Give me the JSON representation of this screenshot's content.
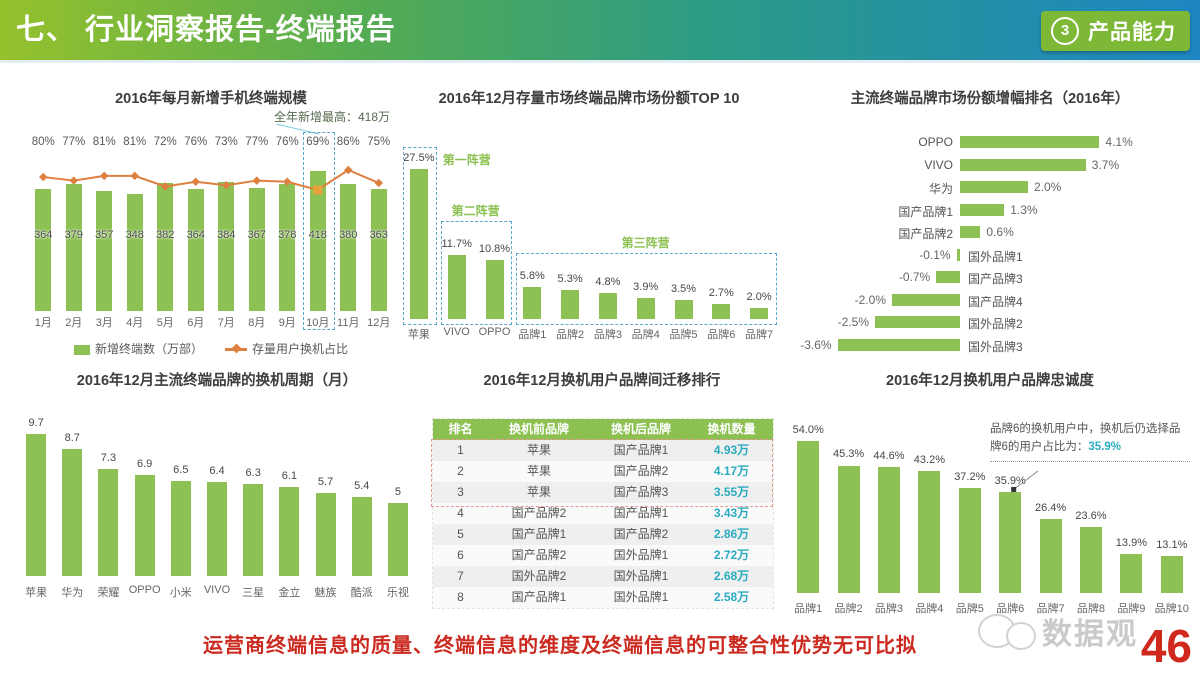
{
  "header": {
    "title": "七、 行业洞察报告-终端报告",
    "badge_number": "3",
    "badge_label": "产品能力"
  },
  "colors": {
    "bar_green": "#8dc153",
    "line_orange": "#dd8040",
    "teal": "#2aabbf",
    "red": "#cb2a21",
    "header_gradient": [
      "#95c12d",
      "#2b9b87",
      "#1d86c3"
    ]
  },
  "chart_data": [
    {
      "id": "monthly_new_terminals",
      "type": "bar",
      "title": "2016年每月新增手机终端规模",
      "annotation": "全年新增最高：418万",
      "categories": [
        "1月",
        "2月",
        "3月",
        "4月",
        "5月",
        "6月",
        "7月",
        "8月",
        "9月",
        "10月",
        "11月",
        "12月"
      ],
      "series": [
        {
          "name": "新增终端数（万部）",
          "type": "bar",
          "values": [
            364,
            379,
            357,
            348,
            382,
            364,
            384,
            367,
            378,
            418,
            380,
            363
          ]
        },
        {
          "name": "存量用户换机占比",
          "type": "line",
          "values": [
            80,
            77,
            81,
            81,
            72,
            76,
            73,
            77,
            76,
            69,
            86,
            75
          ],
          "unit": "%"
        }
      ],
      "highlight_category": "10月",
      "ylim": [
        0,
        418
      ]
    },
    {
      "id": "brand_share_top10",
      "type": "bar",
      "title": "2016年12月存量市场终端品牌市场份额TOP 10",
      "categories": [
        "苹果",
        "VIVO",
        "OPPO",
        "品牌1",
        "品牌2",
        "品牌3",
        "品牌4",
        "品牌5",
        "品牌6",
        "品牌7"
      ],
      "values": [
        27.5,
        11.7,
        10.8,
        5.8,
        5.3,
        4.8,
        3.9,
        3.5,
        2.7,
        2.0
      ],
      "unit": "%",
      "groups": [
        {
          "label": "第一阵营",
          "span": [
            0,
            0
          ]
        },
        {
          "label": "第二阵营",
          "span": [
            1,
            2
          ]
        },
        {
          "label": "第三阵营",
          "span": [
            3,
            9
          ]
        }
      ],
      "ylim": [
        0,
        28
      ]
    },
    {
      "id": "share_growth_ranking",
      "type": "bar-horizontal",
      "title": "主流终端品牌市场份额增幅排名（2016年）",
      "categories": [
        "OPPO",
        "VIVO",
        "华为",
        "国产品牌1",
        "国产品牌2",
        "国外品牌1",
        "国产品牌3",
        "国产品牌4",
        "国外品牌2",
        "国外品牌3"
      ],
      "values": [
        4.1,
        3.7,
        2.0,
        1.3,
        0.6,
        -0.1,
        -0.7,
        -2.0,
        -2.5,
        -3.6
      ],
      "unit": "%",
      "xlim": [
        -4,
        4.5
      ]
    },
    {
      "id": "replacement_cycle",
      "type": "bar",
      "title": "2016年12月主流终端品牌的换机周期（月）",
      "categories": [
        "苹果",
        "华为",
        "荣耀",
        "OPPO",
        "小米",
        "VIVO",
        "三星",
        "金立",
        "魅族",
        "酷派",
        "乐视"
      ],
      "values": [
        9.7,
        8.7,
        7.3,
        6.9,
        6.5,
        6.4,
        6.3,
        6.1,
        5.7,
        5.4,
        5
      ],
      "ylim": [
        0,
        10
      ]
    },
    {
      "id": "brand_migration",
      "type": "table",
      "title": "2016年12月换机用户品牌间迁移排行",
      "columns": [
        "排名",
        "换机前品牌",
        "换机后品牌",
        "换机数量"
      ],
      "rows": [
        [
          "1",
          "苹果",
          "国产品牌1",
          "4.93万"
        ],
        [
          "2",
          "苹果",
          "国产品牌2",
          "4.17万"
        ],
        [
          "3",
          "苹果",
          "国产品牌3",
          "3.55万"
        ],
        [
          "4",
          "国产品牌2",
          "国产品牌1",
          "3.43万"
        ],
        [
          "5",
          "国产品牌1",
          "国产品牌2",
          "2.86万"
        ],
        [
          "6",
          "国产品牌2",
          "国外品牌1",
          "2.72万"
        ],
        [
          "7",
          "国外品牌2",
          "国外品牌1",
          "2.68万"
        ],
        [
          "8",
          "国产品牌1",
          "国外品牌1",
          "2.58万"
        ]
      ],
      "highlight_rows": [
        0,
        1,
        2
      ]
    },
    {
      "id": "brand_loyalty",
      "type": "bar",
      "title": "2016年12月换机用户品牌忠诚度",
      "categories": [
        "品牌1",
        "品牌2",
        "品牌3",
        "品牌4",
        "品牌5",
        "品牌6",
        "品牌7",
        "品牌8",
        "品牌9",
        "品牌10"
      ],
      "values": [
        54.0,
        45.3,
        44.6,
        43.2,
        37.2,
        35.9,
        26.4,
        23.6,
        13.9,
        13.1
      ],
      "unit": "%",
      "annotation": {
        "text": "品牌6的换机用户中，换机后仍选择品牌6的用户占比为：",
        "highlight": "35.9%"
      },
      "ylim": [
        0,
        55
      ]
    }
  ],
  "footer": {
    "note": "运营商终端信息的质量、终端信息的维度及终端信息的可整合性优势无可比拟",
    "page_number": "46",
    "watermark": "数据观"
  }
}
